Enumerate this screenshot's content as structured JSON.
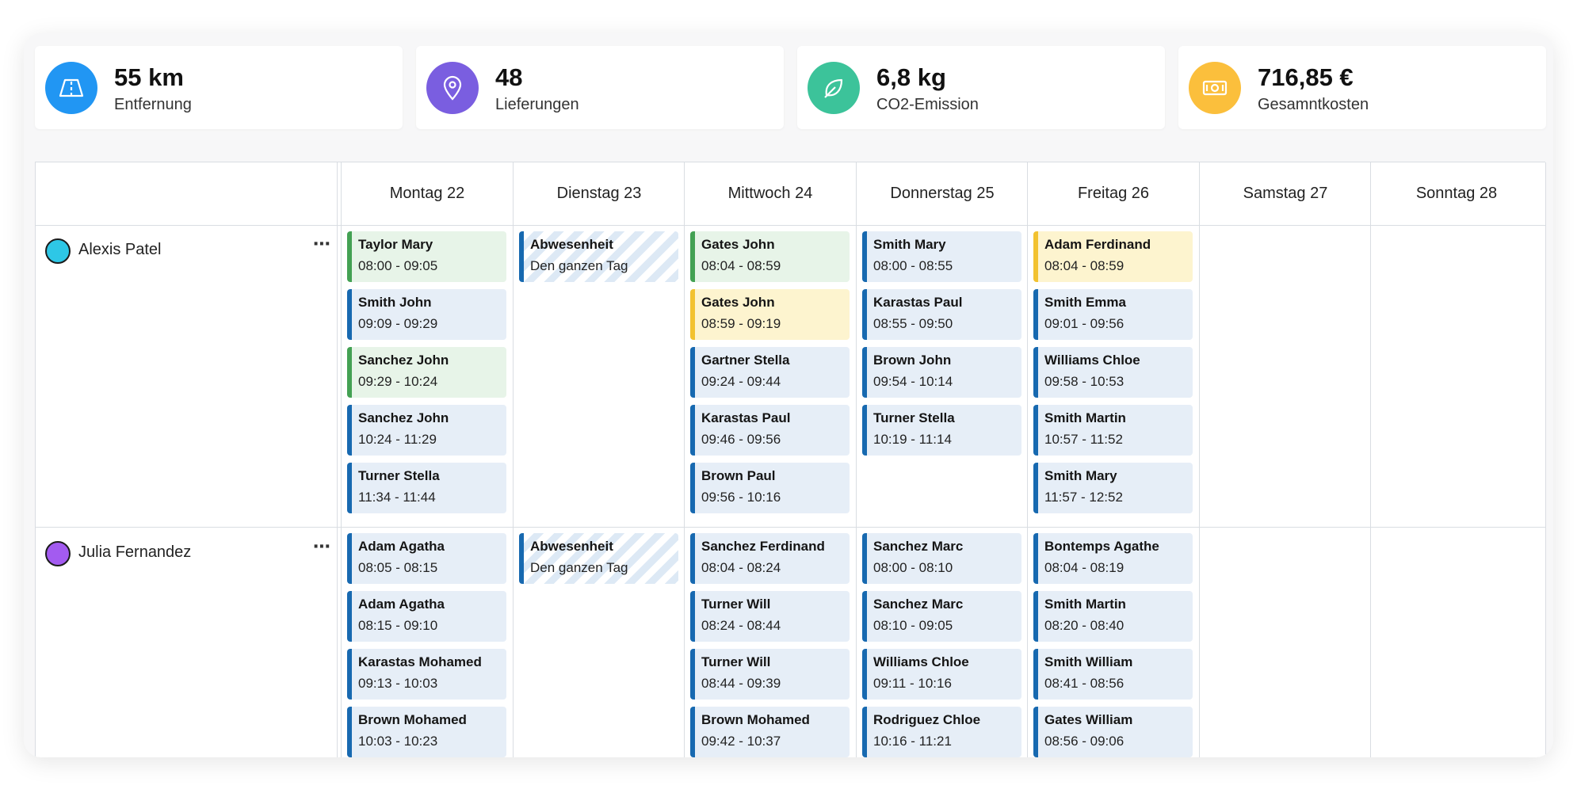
{
  "kpis": [
    {
      "value": "55 km",
      "label": "Entfernung",
      "icon": "road-icon",
      "color": "#2196f3"
    },
    {
      "value": "48",
      "label": "Lieferungen",
      "icon": "map-pin-icon",
      "color": "#7a5ee0"
    },
    {
      "value": "6,8 kg",
      "label": "CO2-Emission",
      "icon": "leaf-icon",
      "color": "#3cc39a"
    },
    {
      "value": "716,85 €",
      "label": "Gesamntkosten",
      "icon": "banknote-icon",
      "color": "#fbbf3c"
    }
  ],
  "days": [
    "Montag 22",
    "Dienstag 23",
    "Mittwoch 24",
    "Donnerstag 25",
    "Freitag 26",
    "Samstag 27",
    "Sonntag 28"
  ],
  "more_label": "⋯",
  "colors": {
    "blue": "#1769b0",
    "green": "#43a153",
    "yellow": "#f2c230"
  },
  "drivers": [
    {
      "name": "Alexis Patel",
      "avatar_color": "#2ec7e6",
      "days": [
        [
          {
            "name": "Taylor Mary",
            "time": "08:00 - 09:05",
            "kind": "green"
          },
          {
            "name": "Smith John",
            "time": "09:09 - 09:29",
            "kind": "blue"
          },
          {
            "name": "Sanchez John",
            "time": "09:29 - 10:24",
            "kind": "green"
          },
          {
            "name": "Sanchez John",
            "time": "10:24 - 11:29",
            "kind": "blue"
          },
          {
            "name": "Turner Stella",
            "time": "11:34 - 11:44",
            "kind": "blue"
          }
        ],
        [
          {
            "name": "Abwesenheit",
            "time": "Den ganzen Tag",
            "kind": "absent"
          }
        ],
        [
          {
            "name": "Gates John",
            "time": "08:04 - 08:59",
            "kind": "green"
          },
          {
            "name": "Gates John",
            "time": "08:59 - 09:19",
            "kind": "yellow"
          },
          {
            "name": "Gartner Stella",
            "time": "09:24 - 09:44",
            "kind": "blue"
          },
          {
            "name": "Karastas Paul",
            "time": "09:46 - 09:56",
            "kind": "blue"
          },
          {
            "name": "Brown Paul",
            "time": "09:56 - 10:16",
            "kind": "blue"
          }
        ],
        [
          {
            "name": "Smith Mary",
            "time": "08:00 - 08:55",
            "kind": "blue"
          },
          {
            "name": "Karastas Paul",
            "time": "08:55 - 09:50",
            "kind": "blue"
          },
          {
            "name": "Brown John",
            "time": "09:54 - 10:14",
            "kind": "blue"
          },
          {
            "name": "Turner Stella",
            "time": "10:19 - 11:14",
            "kind": "blue"
          }
        ],
        [
          {
            "name": "Adam Ferdinand",
            "time": "08:04 - 08:59",
            "kind": "yellow"
          },
          {
            "name": "Smith Emma",
            "time": "09:01 - 09:56",
            "kind": "blue"
          },
          {
            "name": "Williams Chloe",
            "time": "09:58 - 10:53",
            "kind": "blue"
          },
          {
            "name": "Smith Martin",
            "time": "10:57 - 11:52",
            "kind": "blue"
          },
          {
            "name": "Smith Mary",
            "time": "11:57 - 12:52",
            "kind": "blue"
          }
        ],
        [],
        []
      ]
    },
    {
      "name": "Julia Fernandez",
      "avatar_color": "#a35bf0",
      "days": [
        [
          {
            "name": "Adam Agatha",
            "time": "08:05 - 08:15",
            "kind": "blue"
          },
          {
            "name": "Adam Agatha",
            "time": "08:15 - 09:10",
            "kind": "blue"
          },
          {
            "name": "Karastas Mohamed",
            "time": "09:13 - 10:03",
            "kind": "blue"
          },
          {
            "name": "Brown Mohamed",
            "time": "10:03 - 10:23",
            "kind": "blue"
          }
        ],
        [
          {
            "name": "Abwesenheit",
            "time": "Den ganzen Tag",
            "kind": "absent"
          }
        ],
        [
          {
            "name": "Sanchez Ferdinand",
            "time": "08:04 - 08:24",
            "kind": "blue"
          },
          {
            "name": "Turner Will",
            "time": "08:24 - 08:44",
            "kind": "blue"
          },
          {
            "name": "Turner Will",
            "time": "08:44 - 09:39",
            "kind": "blue"
          },
          {
            "name": "Brown Mohamed",
            "time": "09:42 - 10:37",
            "kind": "blue"
          }
        ],
        [
          {
            "name": "Sanchez Marc",
            "time": "08:00 - 08:10",
            "kind": "blue"
          },
          {
            "name": "Sanchez Marc",
            "time": "08:10 - 09:05",
            "kind": "blue"
          },
          {
            "name": "Williams Chloe",
            "time": "09:11 - 10:16",
            "kind": "blue"
          },
          {
            "name": "Rodriguez Chloe",
            "time": "10:16 - 11:21",
            "kind": "blue"
          }
        ],
        [
          {
            "name": "Bontemps Agathe",
            "time": "08:04 - 08:19",
            "kind": "blue"
          },
          {
            "name": "Smith Martin",
            "time": "08:20 - 08:40",
            "kind": "blue"
          },
          {
            "name": "Smith William",
            "time": "08:41 - 08:56",
            "kind": "blue"
          },
          {
            "name": "Gates William",
            "time": "08:56 - 09:06",
            "kind": "blue"
          }
        ],
        [],
        []
      ]
    }
  ]
}
